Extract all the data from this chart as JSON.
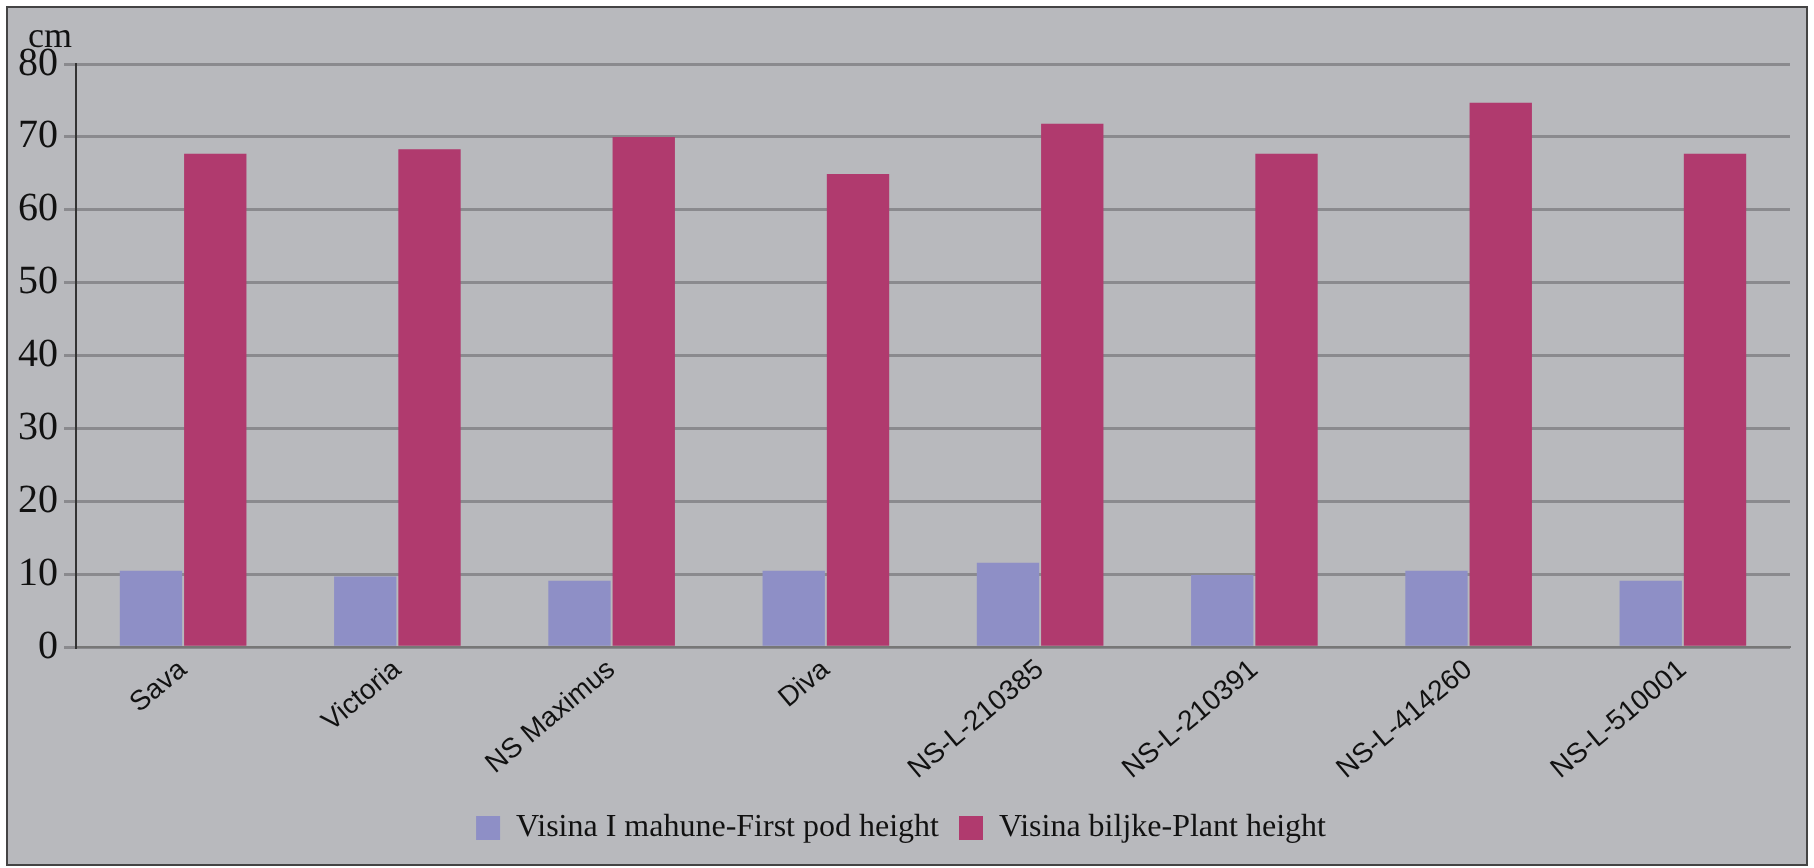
{
  "chart_data": {
    "type": "bar",
    "ylabel": "cm",
    "categories": [
      "Sava",
      "Victoria",
      "NS Maximus",
      "Diva",
      "NS-L-210385",
      "NS-L-210391",
      "NS-L-414260",
      "NS-L-510001"
    ],
    "series": [
      {
        "name": "Visina I mahune-First pod height",
        "color": "#8e8fc6",
        "values": [
          10.5,
          9.7,
          9.1,
          10.5,
          11.6,
          9.9,
          10.5,
          9.1
        ]
      },
      {
        "name": "Visina biljke-Plant height",
        "color": "#b03a6e",
        "values": [
          67.7,
          68.3,
          70.0,
          64.9,
          71.8,
          67.7,
          74.7,
          67.7
        ]
      }
    ],
    "ylim": [
      0,
      80
    ],
    "yticks": [
      0,
      10,
      20,
      30,
      40,
      50,
      60,
      70,
      80
    ],
    "grid": "y",
    "legend": "bottom"
  }
}
